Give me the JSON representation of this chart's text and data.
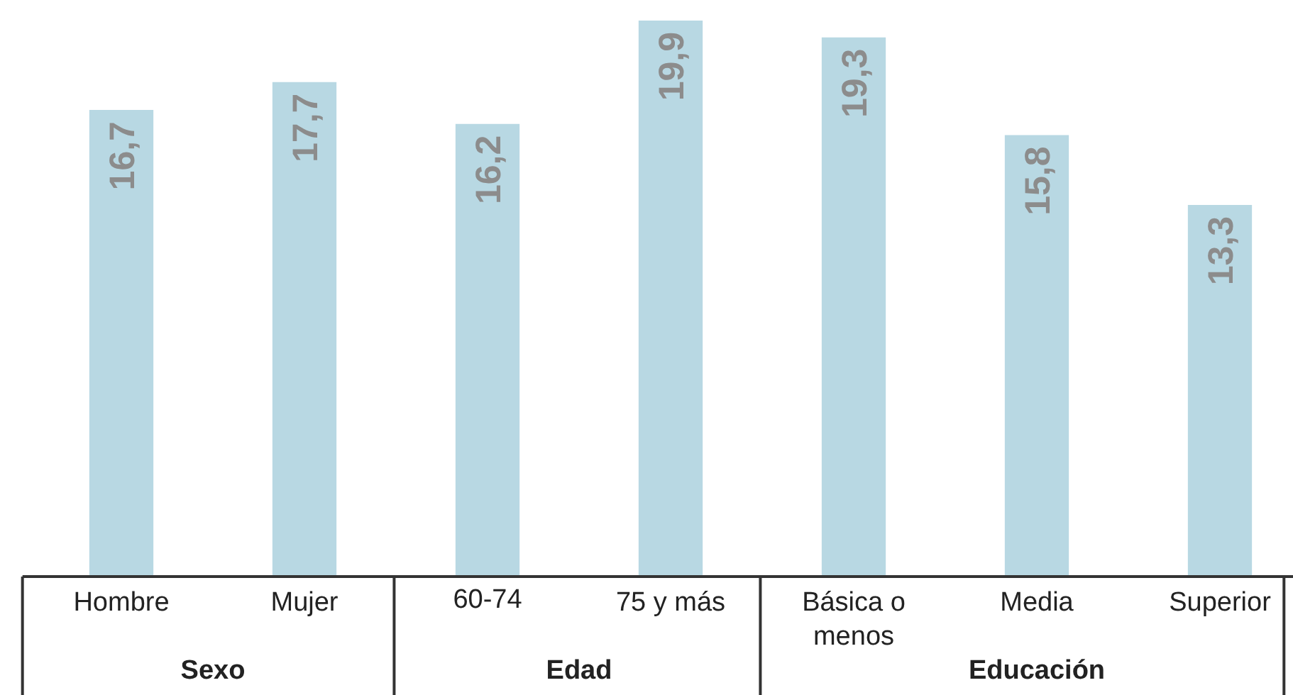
{
  "chart_data": {
    "type": "bar",
    "categories": [
      "Hombre",
      "Mujer",
      "60-74",
      "75 y más",
      "Básica o menos",
      "Media",
      "Superior"
    ],
    "values": [
      16.7,
      17.7,
      16.2,
      19.9,
      19.3,
      15.8,
      13.3
    ],
    "value_labels": [
      "16,7",
      "17,7",
      "16,2",
      "19,9",
      "19,3",
      "15,8",
      "13,3"
    ],
    "color": "#b8d8e3",
    "grid": false,
    "tick_labels": "x",
    "annotations": [
      "Sexo",
      "Edad",
      "Educación"
    ]
  }
}
